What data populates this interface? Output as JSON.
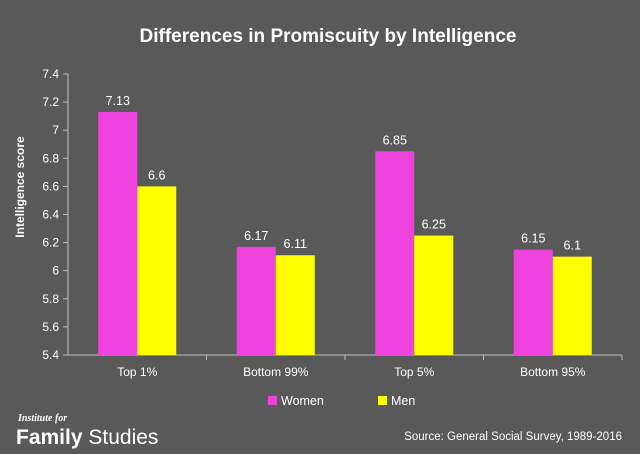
{
  "chart_data": {
    "type": "bar",
    "title": "Differences in Promiscuity by Intelligence",
    "xlabel": "",
    "ylabel": "Intelligence score",
    "categories": [
      "Top 1%",
      "Bottom 99%",
      "Top 5%",
      "Bottom 95%"
    ],
    "series": [
      {
        "name": "Women",
        "color": "#ee44dd",
        "values": [
          7.13,
          6.17,
          6.85,
          6.15
        ],
        "labels": [
          "7.13",
          "6.17",
          "6.85",
          "6.15"
        ]
      },
      {
        "name": "Men",
        "color": "#ffff00",
        "values": [
          6.6,
          6.11,
          6.25,
          6.1
        ],
        "labels": [
          "6.6",
          "6.11",
          "6.25",
          "6.1"
        ]
      }
    ],
    "ylim": [
      5.4,
      7.4
    ],
    "yticks": [
      "5.4",
      "5.6",
      "5.8",
      "6",
      "6.2",
      "6.4",
      "6.6",
      "6.8",
      "7",
      "7.2",
      "7.4"
    ],
    "grid": false,
    "legend_position": "bottom"
  },
  "branding": {
    "line1": "Institute for",
    "line2_bold": "Family",
    "line2_regular": " Studies"
  },
  "source": "Source: General Social Survey, 1989-2016",
  "colors": {
    "background": "#595959",
    "axis": "#bfbfbf",
    "text": "#ffffff"
  }
}
